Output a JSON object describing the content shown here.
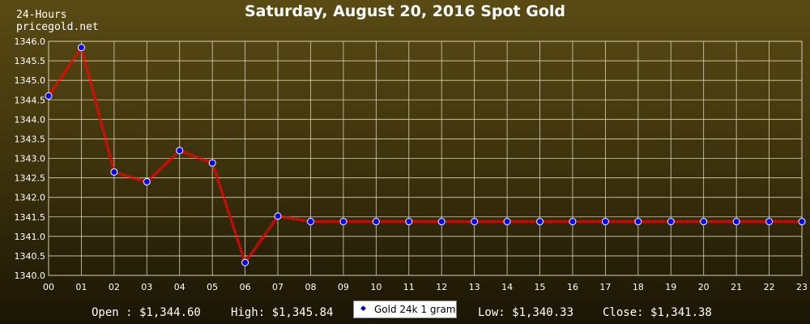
{
  "header": {
    "title": "Saturday, August 20, 2016 Spot Gold",
    "corner_line1": "24-Hours",
    "corner_line2": "pricegold.net"
  },
  "footer": {
    "open": "Open : $1,344.60",
    "high": "High: $1,345.84",
    "low": "Low: $1,340.33",
    "close": "Close: $1,341.38"
  },
  "chart_data": {
    "type": "line",
    "title": "Saturday, August 20, 2016 Spot Gold",
    "xlabel": "",
    "ylabel": "",
    "x": [
      "00",
      "01",
      "02",
      "03",
      "04",
      "05",
      "06",
      "07",
      "08",
      "09",
      "10",
      "11",
      "12",
      "13",
      "14",
      "15",
      "16",
      "17",
      "18",
      "19",
      "20",
      "21",
      "22",
      "23"
    ],
    "ylim": [
      1340.0,
      1346.0
    ],
    "yticks": [
      "1340.0",
      "1340.5",
      "1341.0",
      "1341.5",
      "1342.0",
      "1342.5",
      "1343.0",
      "1343.5",
      "1344.0",
      "1344.5",
      "1345.0",
      "1345.5",
      "1346.0"
    ],
    "grid": true,
    "legend": "bottom-center",
    "series": [
      {
        "name": "Gold 24k 1 gram",
        "line_color": "#ff0000",
        "marker_color": "#0000ff",
        "values": [
          1344.6,
          1345.84,
          1342.65,
          1342.4,
          1343.2,
          1342.88,
          1340.33,
          1341.52,
          1341.38,
          1341.38,
          1341.38,
          1341.38,
          1341.38,
          1341.38,
          1341.38,
          1341.38,
          1341.38,
          1341.38,
          1341.38,
          1341.38,
          1341.38,
          1341.38,
          1341.38,
          1341.38
        ]
      }
    ]
  }
}
